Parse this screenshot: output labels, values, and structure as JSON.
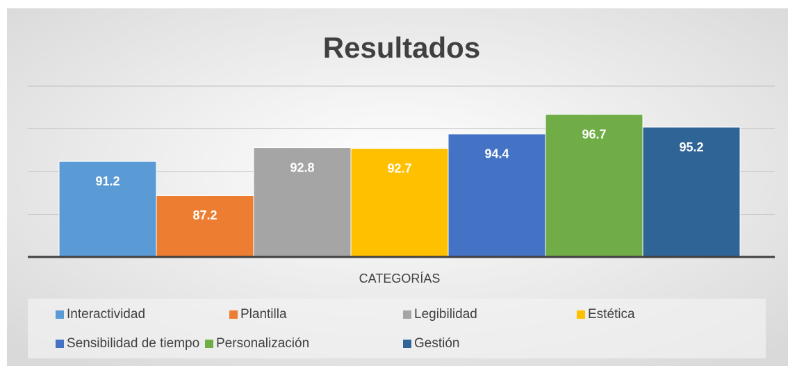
{
  "chart_data": {
    "type": "bar",
    "title": "Resultados",
    "categories": [
      "CATEGORÍAS"
    ],
    "series": [
      {
        "name": "Interactividad",
        "color": "#5b9bd5",
        "values": [
          91.2
        ]
      },
      {
        "name": "Plantilla",
        "color": "#ed7d31",
        "values": [
          87.2
        ]
      },
      {
        "name": "Legibilidad",
        "color": "#a5a5a5",
        "values": [
          92.8
        ]
      },
      {
        "name": "Estética",
        "color": "#ffc000",
        "values": [
          92.7
        ]
      },
      {
        "name": "Sensibilidad de tiempo",
        "color": "#4472c4",
        "values": [
          94.4
        ]
      },
      {
        "name": "Personalización",
        "color": "#70ad47",
        "values": [
          96.7
        ]
      },
      {
        "name": "Gestión",
        "color": "#2f6497",
        "values": [
          95.2
        ]
      }
    ],
    "ylim": [
      80,
      100
    ],
    "yticks": [
      80,
      85,
      90,
      95,
      100
    ],
    "grid": true,
    "legend": "bottom"
  }
}
